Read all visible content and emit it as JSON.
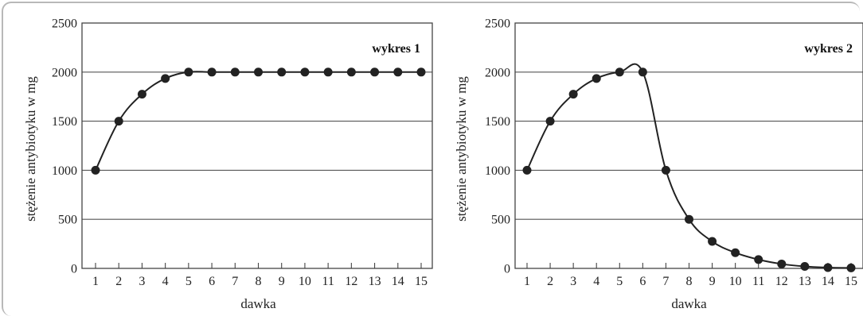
{
  "chart_data": [
    {
      "type": "line",
      "title": "wykres 1",
      "xlabel": "dawka",
      "ylabel": "stężenie antybiotyku w mg",
      "x": [
        1,
        2,
        3,
        4,
        5,
        6,
        7,
        8,
        9,
        10,
        11,
        12,
        13,
        14,
        15
      ],
      "x_ticks": [
        "1",
        "2",
        "3",
        "4",
        "5",
        "6",
        "7",
        "8",
        "9",
        "10",
        "11",
        "12",
        "13",
        "14",
        "15"
      ],
      "y_ticks": [
        "0",
        "500",
        "1000",
        "1500",
        "2000",
        "2500"
      ],
      "series": [
        {
          "values": [
            1000,
            1500,
            1775,
            1935,
            2000,
            2000,
            2000,
            2000,
            2000,
            2000,
            2000,
            2000,
            2000,
            2000,
            2000
          ]
        }
      ],
      "ylim": [
        0,
        2500
      ],
      "xlim": [
        1,
        15
      ],
      "grid": "horizontal",
      "colors": {
        "line": "#222222",
        "marker": "#222222",
        "grid": "#555555"
      }
    },
    {
      "type": "line",
      "title": "wykres 2",
      "xlabel": "dawka",
      "ylabel": "stężenie antybiotyku w mg",
      "x": [
        1,
        2,
        3,
        4,
        5,
        6,
        7,
        8,
        9,
        10,
        11,
        12,
        13,
        14,
        15
      ],
      "x_ticks": [
        "1",
        "2",
        "3",
        "4",
        "5",
        "6",
        "7",
        "8",
        "9",
        "10",
        "11",
        "12",
        "13",
        "14",
        "15"
      ],
      "y_ticks": [
        "0",
        "500",
        "1000",
        "1500",
        "2000",
        "2500"
      ],
      "series": [
        {
          "values": [
            1000,
            1500,
            1775,
            1935,
            2000,
            2000,
            1000,
            500,
            275,
            160,
            90,
            45,
            20,
            8,
            5
          ]
        }
      ],
      "ylim": [
        0,
        2500
      ],
      "xlim": [
        1,
        15
      ],
      "grid": "horizontal",
      "colors": {
        "line": "#222222",
        "marker": "#222222",
        "grid": "#555555"
      }
    }
  ]
}
